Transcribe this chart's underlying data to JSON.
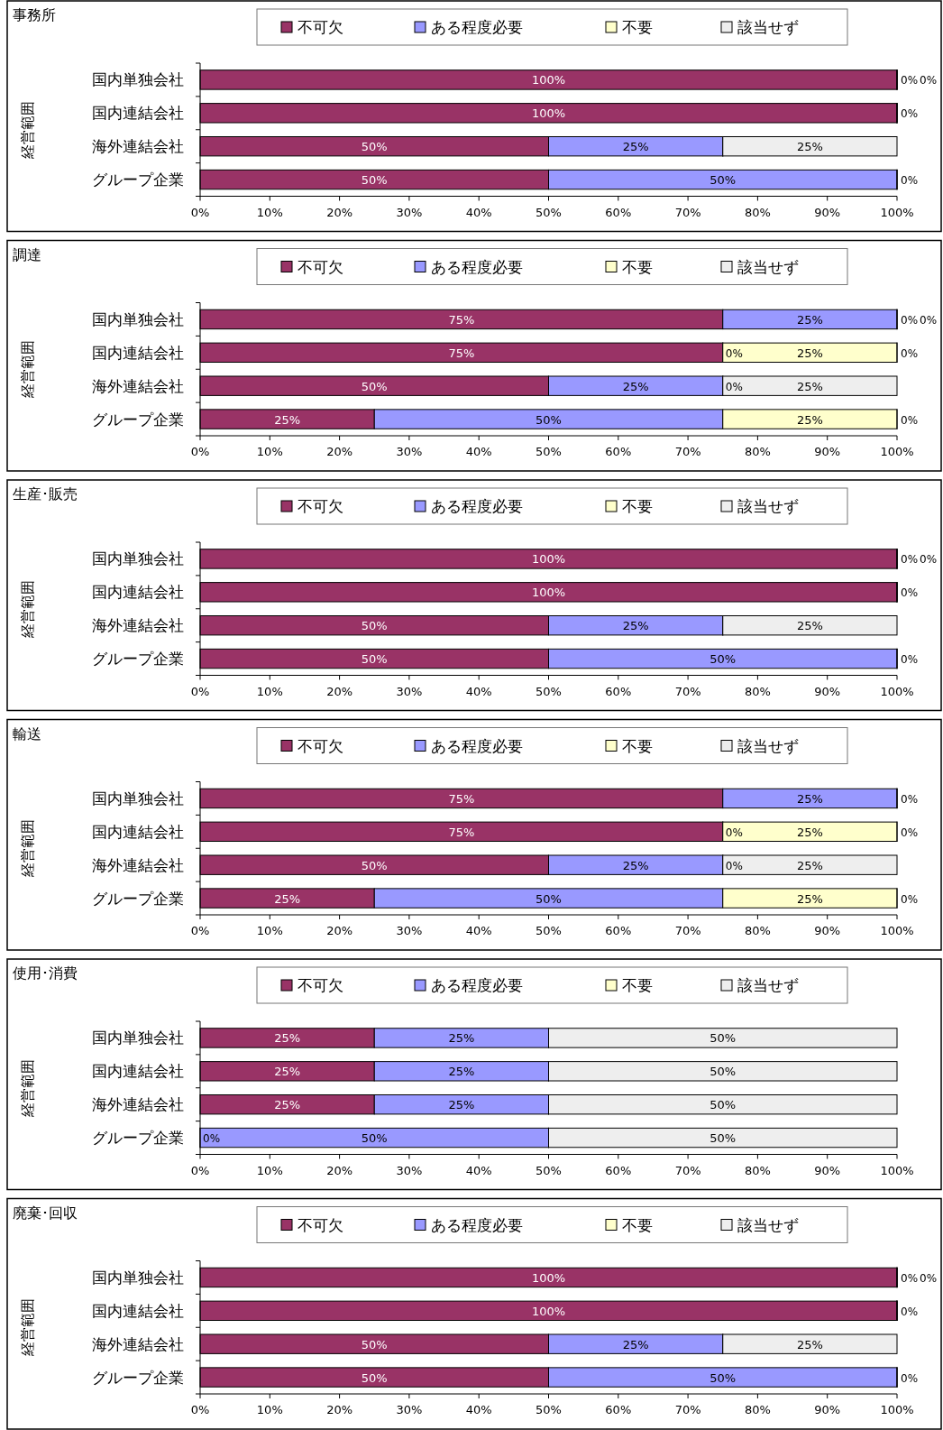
{
  "chart_data": [
    {
      "type": "bar",
      "orientation": "horizontal",
      "stacked": true,
      "title": "事務所",
      "ylabel": "経営範囲",
      "legend": "top",
      "categories": [
        "国内単独会社",
        "国内連結会社",
        "海外連結会社",
        "グループ企業"
      ],
      "xlim": [
        0,
        100
      ],
      "xticks": [
        {
          "value": 0,
          "label": "0%"
        },
        {
          "value": 10,
          "label": "10%"
        },
        {
          "value": 20,
          "label": "20%"
        },
        {
          "value": 30,
          "label": "30%"
        },
        {
          "value": 40,
          "label": "40%"
        },
        {
          "value": 50,
          "label": "50%"
        },
        {
          "value": 60,
          "label": "60%"
        },
        {
          "value": 70,
          "label": "70%"
        },
        {
          "value": 80,
          "label": "80%"
        },
        {
          "value": 90,
          "label": "90%"
        },
        {
          "value": 100,
          "label": "100%"
        }
      ],
      "series": [
        {
          "name": "不可欠",
          "color": "#993366",
          "values": [
            100,
            100,
            50,
            50
          ],
          "value_labels": [
            "100%",
            "100%",
            "50%",
            "50%"
          ]
        },
        {
          "name": "ある程度必要",
          "color": "#9999ff",
          "values": [
            0,
            0,
            25,
            50
          ],
          "value_labels": [
            null,
            null,
            "25%",
            "50%"
          ]
        },
        {
          "name": "不要",
          "color": "#ffffcc",
          "values": [
            0,
            0,
            0,
            0
          ],
          "value_labels": [
            "0%",
            "0%",
            null,
            null
          ]
        },
        {
          "name": "該当せず",
          "color": "#eeeeee",
          "values": [
            0,
            0,
            25,
            0
          ],
          "value_labels": [
            "0%",
            null,
            "25%",
            "0%"
          ]
        }
      ]
    },
    {
      "type": "bar",
      "orientation": "horizontal",
      "stacked": true,
      "title": "調達",
      "ylabel": "経営範囲",
      "legend": "top",
      "categories": [
        "国内単独会社",
        "国内連結会社",
        "海外連結会社",
        "グループ企業"
      ],
      "xlim": [
        0,
        100
      ],
      "xticks": [
        {
          "value": 0,
          "label": "0%"
        },
        {
          "value": 10,
          "label": "10%"
        },
        {
          "value": 20,
          "label": "20%"
        },
        {
          "value": 30,
          "label": "30%"
        },
        {
          "value": 40,
          "label": "40%"
        },
        {
          "value": 50,
          "label": "50%"
        },
        {
          "value": 60,
          "label": "60%"
        },
        {
          "value": 70,
          "label": "70%"
        },
        {
          "value": 80,
          "label": "80%"
        },
        {
          "value": 90,
          "label": "90%"
        },
        {
          "value": 100,
          "label": "100%"
        }
      ],
      "series": [
        {
          "name": "不可欠",
          "color": "#993366",
          "values": [
            75,
            75,
            50,
            25
          ],
          "value_labels": [
            "75%",
            "75%",
            "50%",
            "25%"
          ]
        },
        {
          "name": "ある程度必要",
          "color": "#9999ff",
          "values": [
            25,
            0,
            25,
            50
          ],
          "value_labels": [
            "25%",
            "0%",
            "25%",
            "50%"
          ]
        },
        {
          "name": "不要",
          "color": "#ffffcc",
          "values": [
            0,
            25,
            0,
            25
          ],
          "value_labels": [
            "0%",
            "25%",
            "0%",
            "25%"
          ]
        },
        {
          "name": "該当せず",
          "color": "#eeeeee",
          "values": [
            0,
            0,
            25,
            0
          ],
          "value_labels": [
            "0%",
            "0%",
            "25%",
            "0%"
          ]
        }
      ]
    },
    {
      "type": "bar",
      "orientation": "horizontal",
      "stacked": true,
      "title": "生産･販売",
      "ylabel": "経営範囲",
      "legend": "top",
      "categories": [
        "国内単独会社",
        "国内連結会社",
        "海外連結会社",
        "グループ企業"
      ],
      "xlim": [
        0,
        100
      ],
      "xticks": [
        {
          "value": 0,
          "label": "0%"
        },
        {
          "value": 10,
          "label": "10%"
        },
        {
          "value": 20,
          "label": "20%"
        },
        {
          "value": 30,
          "label": "30%"
        },
        {
          "value": 40,
          "label": "40%"
        },
        {
          "value": 50,
          "label": "50%"
        },
        {
          "value": 60,
          "label": "60%"
        },
        {
          "value": 70,
          "label": "70%"
        },
        {
          "value": 80,
          "label": "80%"
        },
        {
          "value": 90,
          "label": "90%"
        },
        {
          "value": 100,
          "label": "100%"
        }
      ],
      "series": [
        {
          "name": "不可欠",
          "color": "#993366",
          "values": [
            100,
            100,
            50,
            50
          ],
          "value_labels": [
            "100%",
            "100%",
            "50%",
            "50%"
          ]
        },
        {
          "name": "ある程度必要",
          "color": "#9999ff",
          "values": [
            0,
            0,
            25,
            50
          ],
          "value_labels": [
            null,
            null,
            "25%",
            "50%"
          ]
        },
        {
          "name": "不要",
          "color": "#ffffcc",
          "values": [
            0,
            0,
            0,
            0
          ],
          "value_labels": [
            "0%",
            "0%",
            null,
            null
          ]
        },
        {
          "name": "該当せず",
          "color": "#eeeeee",
          "values": [
            0,
            0,
            25,
            0
          ],
          "value_labels": [
            "0%",
            null,
            "25%",
            "0%"
          ]
        }
      ]
    },
    {
      "type": "bar",
      "orientation": "horizontal",
      "stacked": true,
      "title": "輸送",
      "ylabel": "経営範囲",
      "legend": "top",
      "categories": [
        "国内単独会社",
        "国内連結会社",
        "海外連結会社",
        "グループ企業"
      ],
      "xlim": [
        0,
        100
      ],
      "xticks": [
        {
          "value": 0,
          "label": "0%"
        },
        {
          "value": 10,
          "label": "10%"
        },
        {
          "value": 20,
          "label": "20%"
        },
        {
          "value": 30,
          "label": "30%"
        },
        {
          "value": 40,
          "label": "40%"
        },
        {
          "value": 50,
          "label": "50%"
        },
        {
          "value": 60,
          "label": "60%"
        },
        {
          "value": 70,
          "label": "70%"
        },
        {
          "value": 80,
          "label": "80%"
        },
        {
          "value": 90,
          "label": "90%"
        },
        {
          "value": 100,
          "label": "100%"
        }
      ],
      "series": [
        {
          "name": "不可欠",
          "color": "#993366",
          "values": [
            75,
            75,
            50,
            25
          ],
          "value_labels": [
            "75%",
            "75%",
            "50%",
            "25%"
          ]
        },
        {
          "name": "ある程度必要",
          "color": "#9999ff",
          "values": [
            25,
            0,
            25,
            50
          ],
          "value_labels": [
            "25%",
            "0%",
            "25%",
            "50%"
          ]
        },
        {
          "name": "不要",
          "color": "#ffffcc",
          "values": [
            0,
            25,
            0,
            25
          ],
          "value_labels": [
            null,
            "25%",
            "0%",
            "25%"
          ]
        },
        {
          "name": "該当せず",
          "color": "#eeeeee",
          "values": [
            0,
            0,
            25,
            0
          ],
          "value_labels": [
            "0%",
            "0%",
            "25%",
            "0%"
          ]
        }
      ]
    },
    {
      "type": "bar",
      "orientation": "horizontal",
      "stacked": true,
      "title": "使用･消費",
      "ylabel": "経営範囲",
      "legend": "top",
      "categories": [
        "国内単独会社",
        "国内連結会社",
        "海外連結会社",
        "グループ企業"
      ],
      "xlim": [
        0,
        100
      ],
      "xticks": [
        {
          "value": 0,
          "label": "0%"
        },
        {
          "value": 10,
          "label": "10%"
        },
        {
          "value": 20,
          "label": "20%"
        },
        {
          "value": 30,
          "label": "30%"
        },
        {
          "value": 40,
          "label": "40%"
        },
        {
          "value": 50,
          "label": "50%"
        },
        {
          "value": 60,
          "label": "60%"
        },
        {
          "value": 70,
          "label": "70%"
        },
        {
          "value": 80,
          "label": "80%"
        },
        {
          "value": 90,
          "label": "90%"
        },
        {
          "value": 100,
          "label": "100%"
        }
      ],
      "series": [
        {
          "name": "不可欠",
          "color": "#993366",
          "values": [
            25,
            25,
            25,
            0
          ],
          "value_labels": [
            "25%",
            "25%",
            "25%",
            "0%"
          ]
        },
        {
          "name": "ある程度必要",
          "color": "#9999ff",
          "values": [
            25,
            25,
            25,
            50
          ],
          "value_labels": [
            "25%",
            "25%",
            "25%",
            "50%"
          ]
        },
        {
          "name": "不要",
          "color": "#ffffcc",
          "values": [
            0,
            0,
            0,
            0
          ],
          "value_labels": [
            null,
            null,
            null,
            null
          ]
        },
        {
          "name": "該当せず",
          "color": "#eeeeee",
          "values": [
            50,
            50,
            50,
            50
          ],
          "value_labels": [
            "50%",
            "50%",
            "50%",
            "50%"
          ]
        }
      ]
    },
    {
      "type": "bar",
      "orientation": "horizontal",
      "stacked": true,
      "title": "廃棄･回収",
      "ylabel": "経営範囲",
      "legend": "top",
      "categories": [
        "国内単独会社",
        "国内連結会社",
        "海外連結会社",
        "グループ企業"
      ],
      "xlim": [
        0,
        100
      ],
      "xticks": [
        {
          "value": 0,
          "label": "0%"
        },
        {
          "value": 10,
          "label": "10%"
        },
        {
          "value": 20,
          "label": "20%"
        },
        {
          "value": 30,
          "label": "30%"
        },
        {
          "value": 40,
          "label": "40%"
        },
        {
          "value": 50,
          "label": "50%"
        },
        {
          "value": 60,
          "label": "60%"
        },
        {
          "value": 70,
          "label": "70%"
        },
        {
          "value": 80,
          "label": "80%"
        },
        {
          "value": 90,
          "label": "90%"
        },
        {
          "value": 100,
          "label": "100%"
        }
      ],
      "series": [
        {
          "name": "不可欠",
          "color": "#993366",
          "values": [
            100,
            100,
            50,
            50
          ],
          "value_labels": [
            "100%",
            "100%",
            "50%",
            "50%"
          ]
        },
        {
          "name": "ある程度必要",
          "color": "#9999ff",
          "values": [
            0,
            0,
            25,
            50
          ],
          "value_labels": [
            null,
            null,
            "25%",
            "50%"
          ]
        },
        {
          "name": "不要",
          "color": "#ffffcc",
          "values": [
            0,
            0,
            0,
            0
          ],
          "value_labels": [
            "0%",
            "0%",
            null,
            null
          ]
        },
        {
          "name": "該当せず",
          "color": "#eeeeee",
          "values": [
            0,
            0,
            25,
            0
          ],
          "value_labels": [
            "0%",
            null,
            "25%",
            "0%"
          ]
        }
      ]
    }
  ]
}
